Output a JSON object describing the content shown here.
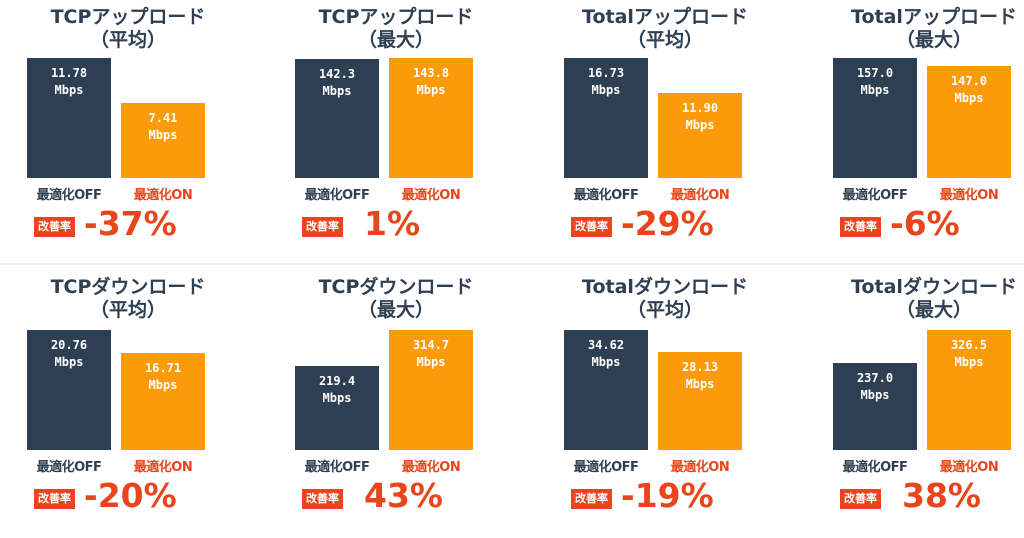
{
  "badge_label": "改善率",
  "colors": {
    "off": "#2e3f54",
    "on": "#fb9b0a",
    "accent": "#e9451c"
  },
  "chart_data": [
    {
      "type": "bar",
      "title": "TCPアップロード",
      "subtitle": "（平均）",
      "categories": [
        "最適化OFF",
        "最適化ON"
      ],
      "values": [
        11.78,
        7.41
      ],
      "value_labels": [
        "11.78",
        "7.41"
      ],
      "unit": "Mbps",
      "rate": "-37%"
    },
    {
      "type": "bar",
      "title": "TCPアップロード",
      "subtitle": "（最大）",
      "categories": [
        "最適化OFF",
        "最適化ON"
      ],
      "values": [
        142.3,
        143.8
      ],
      "value_labels": [
        "142.3",
        "143.8"
      ],
      "unit": "Mbps",
      "rate": "1%"
    },
    {
      "type": "bar",
      "title": "Totalアップロード",
      "subtitle": "（平均）",
      "categories": [
        "最適化OFF",
        "最適化ON"
      ],
      "values": [
        16.73,
        11.9
      ],
      "value_labels": [
        "16.73",
        "11.90"
      ],
      "unit": "Mbps",
      "rate": "-29%"
    },
    {
      "type": "bar",
      "title": "Totalアップロード",
      "subtitle": "（最大）",
      "categories": [
        "最適化OFF",
        "最適化ON"
      ],
      "values": [
        157.0,
        147.0
      ],
      "value_labels": [
        "157.0",
        "147.0"
      ],
      "unit": "Mbps",
      "rate": "-6%"
    },
    {
      "type": "bar",
      "title": "TCPダウンロード",
      "subtitle": "（平均）",
      "categories": [
        "最適化OFF",
        "最適化ON"
      ],
      "values": [
        20.76,
        16.71
      ],
      "value_labels": [
        "20.76",
        "16.71"
      ],
      "unit": "Mbps",
      "rate": "-20%"
    },
    {
      "type": "bar",
      "title": "TCPダウンロード",
      "subtitle": "（最大）",
      "categories": [
        "最適化OFF",
        "最適化ON"
      ],
      "values": [
        219.4,
        314.7
      ],
      "value_labels": [
        "219.4",
        "314.7"
      ],
      "unit": "Mbps",
      "rate": "43%"
    },
    {
      "type": "bar",
      "title": "Totalダウンロード",
      "subtitle": "（平均）",
      "categories": [
        "最適化OFF",
        "最適化ON"
      ],
      "values": [
        34.62,
        28.13
      ],
      "value_labels": [
        "34.62",
        "28.13"
      ],
      "unit": "Mbps",
      "rate": "-19%"
    },
    {
      "type": "bar",
      "title": "Totalダウンロード",
      "subtitle": "（最大）",
      "categories": [
        "最適化OFF",
        "最適化ON"
      ],
      "values": [
        237.0,
        326.5
      ],
      "value_labels": [
        "237.0",
        "326.5"
      ],
      "unit": "Mbps",
      "rate": "38%"
    }
  ]
}
